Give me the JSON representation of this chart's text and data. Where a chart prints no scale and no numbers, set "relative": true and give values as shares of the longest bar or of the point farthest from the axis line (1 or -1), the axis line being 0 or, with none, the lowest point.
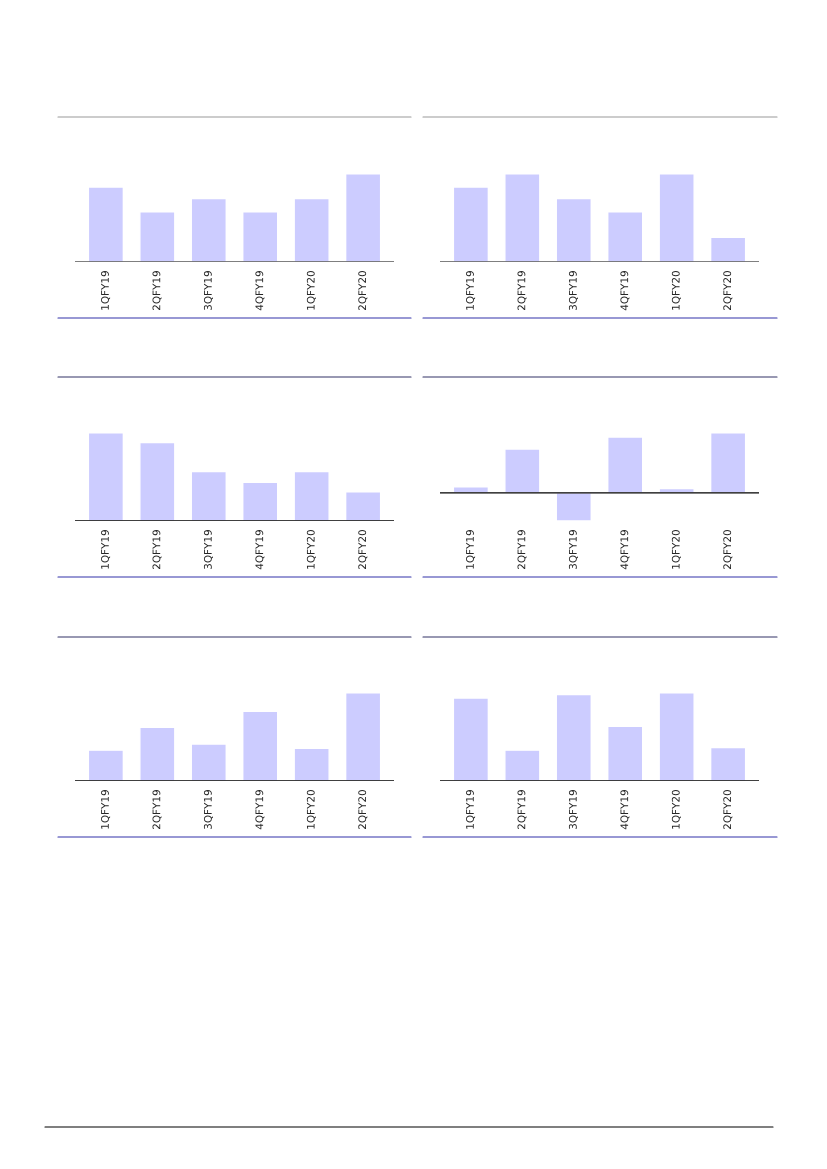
{
  "chart_data": [
    {
      "type": "bar",
      "relative": true,
      "categories": [
        "1QFY19",
        "2QFY19",
        "3QFY19",
        "4QFY19",
        "1QFY20",
        "2QFY20"
      ],
      "color": "#ccccff",
      "values": [
        0.85,
        0.57,
        0.72,
        0.57,
        0.72,
        1
      ]
    },
    {
      "type": "bar",
      "relative": true,
      "categories": [
        "1QFY19",
        "2QFY19",
        "3QFY19",
        "4QFY19",
        "1QFY20",
        "2QFY20"
      ],
      "color": "#ccccff",
      "values": [
        0.85,
        1,
        0.72,
        0.57,
        1,
        0.28
      ]
    },
    {
      "type": "bar",
      "relative": true,
      "categories": [
        "1QFY19",
        "2QFY19",
        "3QFY19",
        "4QFY19",
        "1QFY20",
        "2QFY20"
      ],
      "color": "#ccccff",
      "values": [
        1,
        0.89,
        0.56,
        0.44,
        0.56,
        0.33
      ]
    },
    {
      "type": "bar",
      "relative": true,
      "categories": [
        "1QFY19",
        "2QFY19",
        "3QFY19",
        "4QFY19",
        "1QFY20",
        "2QFY20"
      ],
      "color": "#ccccff",
      "values": [
        0.1,
        0.73,
        -0.47,
        0.93,
        0.07,
        1
      ]
    },
    {
      "type": "bar",
      "relative": true,
      "categories": [
        "1QFY19",
        "2QFY19",
        "3QFY19",
        "4QFY19",
        "1QFY20",
        "2QFY20"
      ],
      "color": "#ccccff",
      "values": [
        0.35,
        0.61,
        0.42,
        0.79,
        0.37,
        1
      ]
    },
    {
      "type": "bar",
      "relative": true,
      "categories": [
        "1QFY19",
        "2QFY19",
        "3QFY19",
        "4QFY19",
        "1QFY20",
        "2QFY20"
      ],
      "color": "#ccccff",
      "values": [
        0.94,
        0.35,
        0.98,
        0.62,
        1,
        0.38
      ]
    }
  ]
}
